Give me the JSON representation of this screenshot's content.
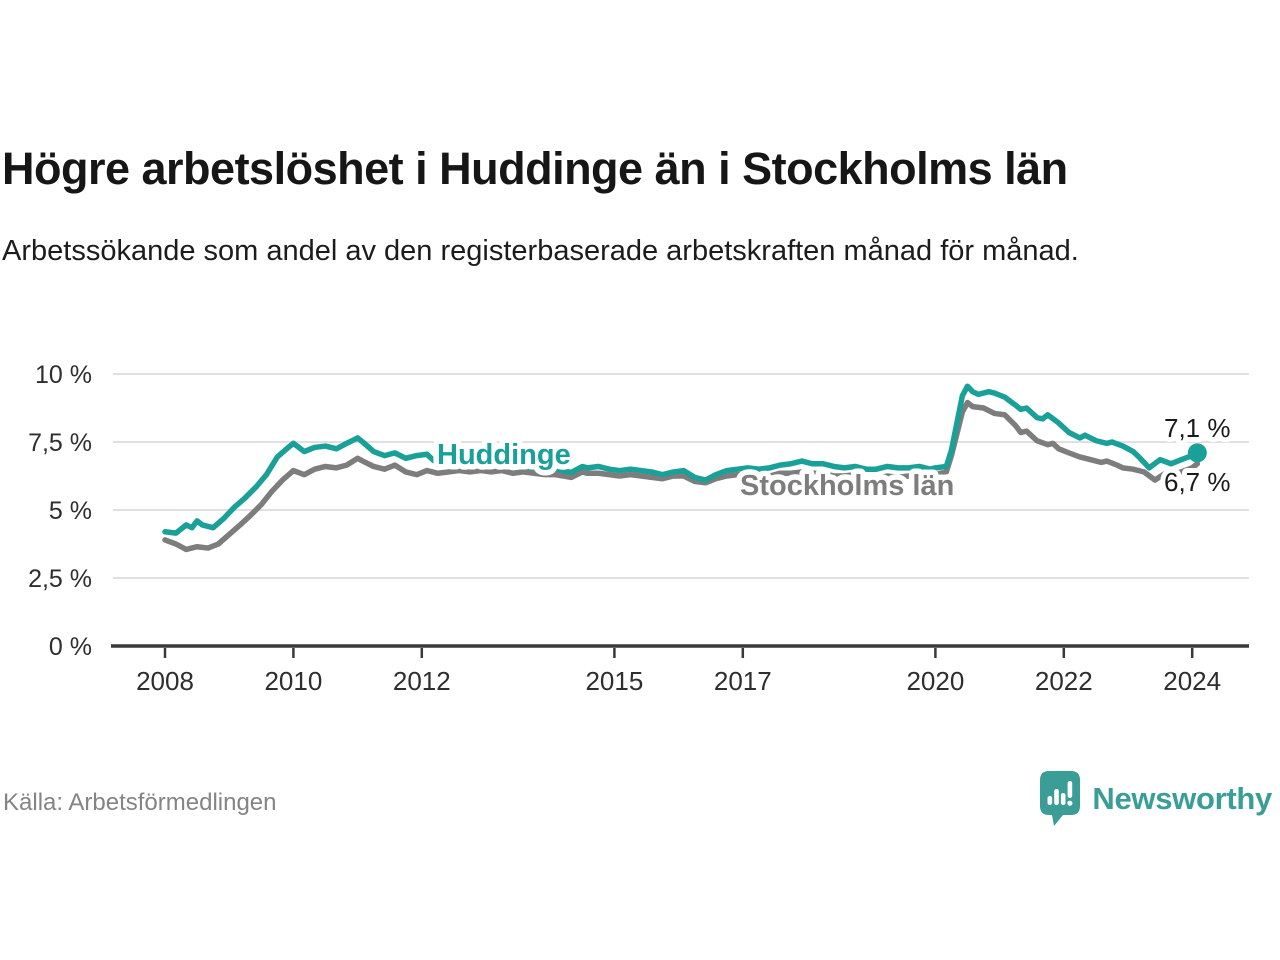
{
  "header": {
    "title": "Högre arbetslöshet i Huddinge än i Stockholms län",
    "subtitle": "Arbetssökande som andel av den registerbaserade arbetskraften månad för månad."
  },
  "footer": {
    "source": "Källa: Arbetsförmedlingen",
    "brand": "Newsworthy"
  },
  "colors": {
    "huddinge": "#19a098",
    "stockholm": "#7d7d7d",
    "grid": "#e0e0e0",
    "axis": "#3a3a3a",
    "tick_text": "#2e2e2e",
    "end_label_text": "#1a1a1a",
    "logo": "#3a9e96"
  },
  "chart_data": {
    "type": "line",
    "title": "Högre arbetslöshet i Huddinge än i Stockholms län",
    "subtitle": "Arbetssökande som andel av den registerbaserade arbetskraften månad för månad.",
    "xlabel": "",
    "ylabel": "",
    "grid": true,
    "legend_position": "inline-labels",
    "xlim": [
      2007.2,
      2024.9
    ],
    "ylim": [
      0,
      10
    ],
    "x_ticks": [
      2008,
      2010,
      2012,
      2015,
      2017,
      2020,
      2022,
      2024
    ],
    "y_ticks": [
      {
        "value": 0,
        "label": "0 %"
      },
      {
        "value": 2.5,
        "label": "2,5 %"
      },
      {
        "value": 5,
        "label": "5 %"
      },
      {
        "value": 7.5,
        "label": "7,5 %"
      },
      {
        "value": 10,
        "label": "10 %"
      }
    ],
    "unit": "%",
    "series": [
      {
        "name": "Huddinge",
        "color": "#19a098",
        "end_label": "7,1 %",
        "end_value": 7.1,
        "points": [
          [
            2008.0,
            4.2
          ],
          [
            2008.17,
            4.15
          ],
          [
            2008.33,
            4.45
          ],
          [
            2008.42,
            4.35
          ],
          [
            2008.5,
            4.6
          ],
          [
            2008.58,
            4.45
          ],
          [
            2008.75,
            4.35
          ],
          [
            2008.92,
            4.7
          ],
          [
            2009.08,
            5.1
          ],
          [
            2009.25,
            5.45
          ],
          [
            2009.42,
            5.85
          ],
          [
            2009.58,
            6.3
          ],
          [
            2009.75,
            6.95
          ],
          [
            2009.92,
            7.3
          ],
          [
            2010.0,
            7.45
          ],
          [
            2010.17,
            7.15
          ],
          [
            2010.33,
            7.3
          ],
          [
            2010.5,
            7.35
          ],
          [
            2010.67,
            7.25
          ],
          [
            2010.83,
            7.45
          ],
          [
            2011.0,
            7.65
          ],
          [
            2011.08,
            7.5
          ],
          [
            2011.25,
            7.15
          ],
          [
            2011.42,
            7.0
          ],
          [
            2011.58,
            7.1
          ],
          [
            2011.75,
            6.9
          ],
          [
            2011.92,
            7.0
          ],
          [
            2012.08,
            7.05
          ],
          [
            2012.17,
            6.85
          ],
          [
            2012.25,
            6.7
          ],
          [
            2012.42,
            6.75
          ],
          [
            2012.58,
            6.8
          ],
          [
            2012.75,
            6.7
          ],
          [
            2012.92,
            6.7
          ],
          [
            2013.08,
            6.65
          ],
          [
            2013.25,
            6.7
          ],
          [
            2013.42,
            6.6
          ],
          [
            2013.58,
            6.6
          ],
          [
            2013.75,
            6.55
          ],
          [
            2013.92,
            6.5
          ],
          [
            2014.08,
            6.5
          ],
          [
            2014.33,
            6.38
          ],
          [
            2014.5,
            6.6
          ],
          [
            2014.58,
            6.55
          ],
          [
            2014.75,
            6.6
          ],
          [
            2014.92,
            6.5
          ],
          [
            2015.08,
            6.45
          ],
          [
            2015.25,
            6.5
          ],
          [
            2015.42,
            6.45
          ],
          [
            2015.58,
            6.4
          ],
          [
            2015.75,
            6.3
          ],
          [
            2015.92,
            6.4
          ],
          [
            2016.08,
            6.45
          ],
          [
            2016.25,
            6.2
          ],
          [
            2016.42,
            6.1
          ],
          [
            2016.58,
            6.3
          ],
          [
            2016.75,
            6.45
          ],
          [
            2016.92,
            6.5
          ],
          [
            2017.08,
            6.55
          ],
          [
            2017.25,
            6.5
          ],
          [
            2017.42,
            6.55
          ],
          [
            2017.58,
            6.65
          ],
          [
            2017.75,
            6.7
          ],
          [
            2017.92,
            6.8
          ],
          [
            2018.08,
            6.7
          ],
          [
            2018.25,
            6.7
          ],
          [
            2018.42,
            6.6
          ],
          [
            2018.58,
            6.55
          ],
          [
            2018.75,
            6.6
          ],
          [
            2018.92,
            6.5
          ],
          [
            2019.08,
            6.5
          ],
          [
            2019.25,
            6.6
          ],
          [
            2019.42,
            6.55
          ],
          [
            2019.58,
            6.55
          ],
          [
            2019.75,
            6.6
          ],
          [
            2019.92,
            6.5
          ],
          [
            2020.0,
            6.55
          ],
          [
            2020.17,
            6.6
          ],
          [
            2020.25,
            7.2
          ],
          [
            2020.42,
            9.2
          ],
          [
            2020.5,
            9.55
          ],
          [
            2020.58,
            9.35
          ],
          [
            2020.67,
            9.25
          ],
          [
            2020.83,
            9.35
          ],
          [
            2020.92,
            9.3
          ],
          [
            2021.08,
            9.15
          ],
          [
            2021.25,
            8.85
          ],
          [
            2021.33,
            8.7
          ],
          [
            2021.42,
            8.75
          ],
          [
            2021.58,
            8.4
          ],
          [
            2021.67,
            8.35
          ],
          [
            2021.75,
            8.5
          ],
          [
            2021.92,
            8.2
          ],
          [
            2022.08,
            7.85
          ],
          [
            2022.25,
            7.65
          ],
          [
            2022.33,
            7.75
          ],
          [
            2022.5,
            7.55
          ],
          [
            2022.67,
            7.45
          ],
          [
            2022.75,
            7.5
          ],
          [
            2022.92,
            7.35
          ],
          [
            2023.08,
            7.15
          ],
          [
            2023.17,
            6.95
          ],
          [
            2023.33,
            6.55
          ],
          [
            2023.5,
            6.85
          ],
          [
            2023.67,
            6.7
          ],
          [
            2023.83,
            6.85
          ],
          [
            2024.0,
            7.0
          ],
          [
            2024.08,
            7.1
          ]
        ]
      },
      {
        "name": "Stockholms län",
        "color": "#7d7d7d",
        "end_label": "6,7 %",
        "end_value": 6.7,
        "points": [
          [
            2008.0,
            3.9
          ],
          [
            2008.17,
            3.75
          ],
          [
            2008.33,
            3.55
          ],
          [
            2008.5,
            3.65
          ],
          [
            2008.67,
            3.6
          ],
          [
            2008.83,
            3.75
          ],
          [
            2009.0,
            4.1
          ],
          [
            2009.17,
            4.45
          ],
          [
            2009.33,
            4.8
          ],
          [
            2009.5,
            5.2
          ],
          [
            2009.67,
            5.7
          ],
          [
            2009.83,
            6.1
          ],
          [
            2010.0,
            6.45
          ],
          [
            2010.17,
            6.3
          ],
          [
            2010.33,
            6.5
          ],
          [
            2010.5,
            6.6
          ],
          [
            2010.67,
            6.55
          ],
          [
            2010.83,
            6.65
          ],
          [
            2011.0,
            6.9
          ],
          [
            2011.08,
            6.8
          ],
          [
            2011.25,
            6.6
          ],
          [
            2011.42,
            6.5
          ],
          [
            2011.58,
            6.65
          ],
          [
            2011.75,
            6.4
          ],
          [
            2011.92,
            6.3
          ],
          [
            2012.08,
            6.45
          ],
          [
            2012.25,
            6.35
          ],
          [
            2012.42,
            6.4
          ],
          [
            2012.58,
            6.45
          ],
          [
            2012.75,
            6.4
          ],
          [
            2012.92,
            6.45
          ],
          [
            2013.08,
            6.4
          ],
          [
            2013.25,
            6.45
          ],
          [
            2013.42,
            6.35
          ],
          [
            2013.58,
            6.4
          ],
          [
            2013.75,
            6.35
          ],
          [
            2013.92,
            6.3
          ],
          [
            2014.08,
            6.3
          ],
          [
            2014.33,
            6.2
          ],
          [
            2014.5,
            6.4
          ],
          [
            2014.58,
            6.35
          ],
          [
            2014.75,
            6.35
          ],
          [
            2014.92,
            6.3
          ],
          [
            2015.08,
            6.25
          ],
          [
            2015.25,
            6.3
          ],
          [
            2015.42,
            6.25
          ],
          [
            2015.58,
            6.2
          ],
          [
            2015.75,
            6.15
          ],
          [
            2015.92,
            6.25
          ],
          [
            2016.08,
            6.25
          ],
          [
            2016.25,
            6.05
          ],
          [
            2016.42,
            6.0
          ],
          [
            2016.58,
            6.15
          ],
          [
            2016.75,
            6.25
          ],
          [
            2016.92,
            6.3
          ],
          [
            2017.08,
            6.3
          ],
          [
            2017.25,
            6.25
          ],
          [
            2017.42,
            6.25
          ],
          [
            2017.58,
            6.35
          ],
          [
            2017.75,
            6.35
          ],
          [
            2017.92,
            6.4
          ],
          [
            2018.08,
            6.35
          ],
          [
            2018.25,
            6.35
          ],
          [
            2018.42,
            6.25
          ],
          [
            2018.58,
            6.25
          ],
          [
            2018.75,
            6.3
          ],
          [
            2018.92,
            6.2
          ],
          [
            2019.08,
            6.15
          ],
          [
            2019.25,
            6.25
          ],
          [
            2019.42,
            6.2
          ],
          [
            2019.58,
            6.25
          ],
          [
            2019.75,
            6.3
          ],
          [
            2019.92,
            6.25
          ],
          [
            2020.0,
            6.3
          ],
          [
            2020.17,
            6.4
          ],
          [
            2020.25,
            7.0
          ],
          [
            2020.42,
            8.6
          ],
          [
            2020.5,
            8.95
          ],
          [
            2020.58,
            8.8
          ],
          [
            2020.75,
            8.75
          ],
          [
            2020.92,
            8.55
          ],
          [
            2021.08,
            8.5
          ],
          [
            2021.25,
            8.1
          ],
          [
            2021.33,
            7.85
          ],
          [
            2021.42,
            7.9
          ],
          [
            2021.58,
            7.55
          ],
          [
            2021.75,
            7.4
          ],
          [
            2021.83,
            7.45
          ],
          [
            2021.92,
            7.25
          ],
          [
            2022.08,
            7.1
          ],
          [
            2022.25,
            6.95
          ],
          [
            2022.42,
            6.85
          ],
          [
            2022.58,
            6.75
          ],
          [
            2022.67,
            6.8
          ],
          [
            2022.83,
            6.65
          ],
          [
            2022.92,
            6.55
          ],
          [
            2023.08,
            6.5
          ],
          [
            2023.25,
            6.4
          ],
          [
            2023.42,
            6.1
          ],
          [
            2023.58,
            6.35
          ],
          [
            2023.67,
            6.3
          ],
          [
            2023.83,
            6.4
          ],
          [
            2024.0,
            6.55
          ],
          [
            2024.08,
            6.7
          ]
        ]
      }
    ]
  }
}
